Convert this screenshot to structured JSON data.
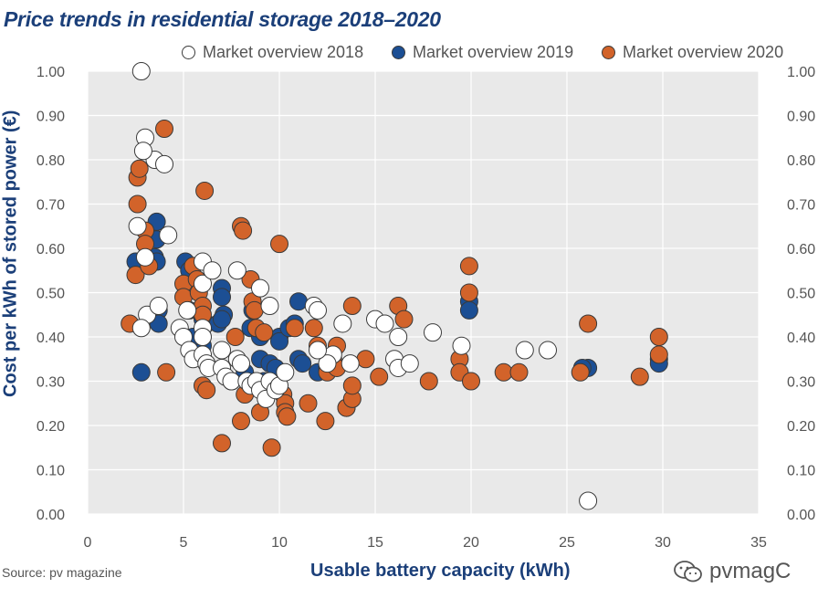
{
  "chart_data": {
    "type": "scatter",
    "title": "Price trends in residential storage 2018–2020",
    "xlabel": "Usable battery capacity (kWh)",
    "ylabel": "Cost per kWh of stored power (€)",
    "xlim": [
      0,
      35
    ],
    "ylim": [
      0,
      1.0
    ],
    "x_ticks": [
      "0",
      "5",
      "10",
      "15",
      "20",
      "25",
      "30",
      "35"
    ],
    "y_ticks": [
      "0.00",
      "0.10",
      "0.20",
      "0.30",
      "0.40",
      "0.50",
      "0.60",
      "0.70",
      "0.80",
      "0.90",
      "1.00"
    ],
    "grid": true,
    "legend_position": "top",
    "series": [
      {
        "name": "Market overview 2019",
        "color": "#1c4f94",
        "points": [
          [
            2.8,
            0.32
          ],
          [
            3.6,
            0.66
          ],
          [
            3.6,
            0.62
          ],
          [
            3.5,
            0.58
          ],
          [
            3.6,
            0.57
          ],
          [
            2.5,
            0.57
          ],
          [
            3.7,
            0.46
          ],
          [
            3.7,
            0.43
          ],
          [
            5.1,
            0.57
          ],
          [
            5.3,
            0.55
          ],
          [
            5.3,
            0.46
          ],
          [
            5.8,
            0.46
          ],
          [
            6.0,
            0.44
          ],
          [
            6.2,
            0.43
          ],
          [
            6.8,
            0.43
          ],
          [
            7.1,
            0.45
          ],
          [
            7.0,
            0.51
          ],
          [
            7.0,
            0.49
          ],
          [
            7.0,
            0.44
          ],
          [
            6.0,
            0.38
          ],
          [
            5.5,
            0.4
          ],
          [
            8.6,
            0.46
          ],
          [
            8.5,
            0.42
          ],
          [
            9.0,
            0.4
          ],
          [
            9.0,
            0.35
          ],
          [
            9.5,
            0.34
          ],
          [
            9.8,
            0.33
          ],
          [
            10.0,
            0.4
          ],
          [
            10.0,
            0.39
          ],
          [
            10.5,
            0.42
          ],
          [
            10.8,
            0.43
          ],
          [
            11.0,
            0.48
          ],
          [
            11.0,
            0.35
          ],
          [
            11.2,
            0.34
          ],
          [
            12.0,
            0.32
          ],
          [
            12.5,
            0.33
          ],
          [
            9.2,
            0.3
          ],
          [
            8.2,
            0.32
          ],
          [
            19.9,
            0.48
          ],
          [
            19.9,
            0.46
          ],
          [
            29.8,
            0.35
          ],
          [
            29.8,
            0.34
          ],
          [
            26.1,
            0.33
          ],
          [
            25.8,
            0.33
          ]
        ]
      },
      {
        "name": "Market overview 2020",
        "color": "#d2632a",
        "points": [
          [
            2.2,
            0.43
          ],
          [
            2.5,
            0.54
          ],
          [
            2.6,
            0.7
          ],
          [
            2.6,
            0.76
          ],
          [
            2.7,
            0.78
          ],
          [
            3.0,
            0.64
          ],
          [
            3.0,
            0.61
          ],
          [
            3.2,
            0.56
          ],
          [
            4.0,
            0.87
          ],
          [
            4.1,
            0.32
          ],
          [
            6.1,
            0.73
          ],
          [
            5.0,
            0.52
          ],
          [
            5.0,
            0.49
          ],
          [
            5.5,
            0.56
          ],
          [
            5.7,
            0.53
          ],
          [
            5.8,
            0.5
          ],
          [
            6.0,
            0.47
          ],
          [
            6.0,
            0.45
          ],
          [
            6.0,
            0.29
          ],
          [
            6.2,
            0.28
          ],
          [
            7.0,
            0.16
          ],
          [
            7.5,
            0.3
          ],
          [
            7.7,
            0.4
          ],
          [
            8.0,
            0.21
          ],
          [
            8.0,
            0.65
          ],
          [
            8.1,
            0.64
          ],
          [
            8.2,
            0.27
          ],
          [
            8.5,
            0.53
          ],
          [
            8.6,
            0.48
          ],
          [
            8.7,
            0.46
          ],
          [
            8.8,
            0.42
          ],
          [
            9.0,
            0.23
          ],
          [
            9.2,
            0.41
          ],
          [
            9.6,
            0.15
          ],
          [
            10.0,
            0.61
          ],
          [
            10.2,
            0.27
          ],
          [
            10.3,
            0.25
          ],
          [
            10.3,
            0.23
          ],
          [
            10.4,
            0.22
          ],
          [
            10.8,
            0.42
          ],
          [
            11.5,
            0.25
          ],
          [
            11.8,
            0.42
          ],
          [
            12.0,
            0.38
          ],
          [
            12.4,
            0.21
          ],
          [
            12.5,
            0.32
          ],
          [
            12.8,
            0.35
          ],
          [
            13.0,
            0.33
          ],
          [
            13.0,
            0.38
          ],
          [
            13.5,
            0.24
          ],
          [
            13.5,
            0.24
          ],
          [
            13.8,
            0.26
          ],
          [
            13.8,
            0.29
          ],
          [
            13.8,
            0.47
          ],
          [
            14.5,
            0.35
          ],
          [
            15.2,
            0.31
          ],
          [
            16.2,
            0.47
          ],
          [
            16.5,
            0.44
          ],
          [
            17.8,
            0.3
          ],
          [
            19.4,
            0.35
          ],
          [
            19.4,
            0.32
          ],
          [
            19.9,
            0.56
          ],
          [
            19.9,
            0.5
          ],
          [
            20.0,
            0.3
          ],
          [
            21.7,
            0.32
          ],
          [
            22.5,
            0.32
          ],
          [
            25.7,
            0.32
          ],
          [
            26.1,
            0.43
          ],
          [
            28.8,
            0.31
          ],
          [
            29.8,
            0.4
          ],
          [
            29.8,
            0.36
          ]
        ]
      },
      {
        "name": "Market overview 2018",
        "color": "#ffffff",
        "points": [
          [
            2.8,
            1.0
          ],
          [
            3.0,
            0.85
          ],
          [
            3.5,
            0.8
          ],
          [
            2.9,
            0.82
          ],
          [
            2.6,
            0.65
          ],
          [
            3.0,
            0.58
          ],
          [
            4.0,
            0.79
          ],
          [
            4.2,
            0.63
          ],
          [
            3.1,
            0.45
          ],
          [
            2.8,
            0.42
          ],
          [
            3.7,
            0.47
          ],
          [
            5.2,
            0.46
          ],
          [
            4.8,
            0.42
          ],
          [
            5.0,
            0.4
          ],
          [
            5.3,
            0.37
          ],
          [
            5.5,
            0.35
          ],
          [
            6.0,
            0.52
          ],
          [
            6.0,
            0.57
          ],
          [
            6.5,
            0.55
          ],
          [
            6.0,
            0.42
          ],
          [
            6.0,
            0.4
          ],
          [
            6.0,
            0.36
          ],
          [
            6.2,
            0.34
          ],
          [
            6.3,
            0.33
          ],
          [
            7.0,
            0.37
          ],
          [
            7.0,
            0.33
          ],
          [
            7.2,
            0.31
          ],
          [
            7.8,
            0.35
          ],
          [
            7.5,
            0.3
          ],
          [
            8.0,
            0.34
          ],
          [
            8.3,
            0.3
          ],
          [
            8.5,
            0.29
          ],
          [
            8.8,
            0.3
          ],
          [
            9.0,
            0.28
          ],
          [
            9.3,
            0.26
          ],
          [
            9.5,
            0.3
          ],
          [
            9.8,
            0.28
          ],
          [
            7.8,
            0.55
          ],
          [
            9.0,
            0.51
          ],
          [
            9.5,
            0.47
          ],
          [
            10.0,
            0.29
          ],
          [
            10.3,
            0.32
          ],
          [
            11.8,
            0.47
          ],
          [
            12.0,
            0.46
          ],
          [
            12.8,
            0.36
          ],
          [
            12.5,
            0.34
          ],
          [
            12.0,
            0.37
          ],
          [
            13.3,
            0.43
          ],
          [
            13.7,
            0.34
          ],
          [
            15.0,
            0.44
          ],
          [
            15.5,
            0.43
          ],
          [
            16.0,
            0.35
          ],
          [
            16.2,
            0.4
          ],
          [
            16.2,
            0.33
          ],
          [
            16.8,
            0.34
          ],
          [
            18.0,
            0.41
          ],
          [
            19.5,
            0.38
          ],
          [
            22.8,
            0.37
          ],
          [
            24.0,
            0.37
          ],
          [
            26.1,
            0.03
          ]
        ]
      }
    ],
    "source": "Source: pv magazine",
    "watermark": "pvmagC"
  }
}
